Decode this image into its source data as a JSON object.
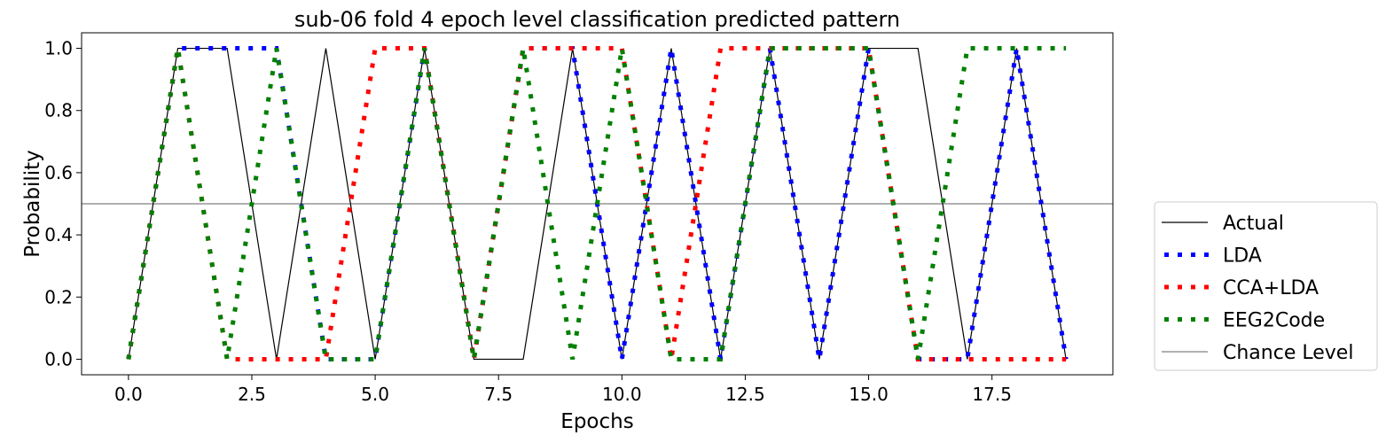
{
  "chart_data": {
    "type": "line",
    "title": "sub-06 fold 4 epoch level classification predicted pattern",
    "xlabel": "Epochs",
    "ylabel": "Probability",
    "xlim": [
      -0.95,
      19.95
    ],
    "ylim": [
      -0.05,
      1.05
    ],
    "xticks": [
      0.0,
      2.5,
      5.0,
      7.5,
      10.0,
      12.5,
      15.0,
      17.5
    ],
    "xtick_labels": [
      "0.0",
      "2.5",
      "5.0",
      "7.5",
      "10.0",
      "12.5",
      "15.0",
      "17.5"
    ],
    "yticks": [
      0.0,
      0.2,
      0.4,
      0.6,
      0.8,
      1.0
    ],
    "ytick_labels": [
      "0.0",
      "0.2",
      "0.4",
      "0.6",
      "0.8",
      "1.0"
    ],
    "grid": false,
    "legend_position": "outside-right",
    "series": [
      {
        "name": "Actual",
        "color": "#000000",
        "style": "solid",
        "points": [
          [
            0,
            0
          ],
          [
            1,
            1
          ],
          [
            2,
            1
          ],
          [
            3,
            0
          ],
          [
            4,
            1
          ],
          [
            5,
            0
          ],
          [
            6,
            1
          ],
          [
            7,
            0
          ],
          [
            8,
            0
          ],
          [
            9,
            1
          ],
          [
            10,
            0
          ],
          [
            11,
            1
          ],
          [
            12,
            0
          ],
          [
            13,
            1
          ],
          [
            14,
            0
          ],
          [
            15,
            1
          ],
          [
            16,
            1
          ],
          [
            17,
            0
          ],
          [
            18,
            1
          ],
          [
            19,
            0
          ]
        ]
      },
      {
        "name": "LDA",
        "color": "#0000ff",
        "style": "dotted",
        "points": [
          [
            0,
            0
          ],
          [
            1,
            1
          ],
          [
            2,
            1
          ],
          [
            3,
            1
          ],
          [
            4,
            0
          ],
          [
            5,
            0
          ],
          [
            6,
            1
          ],
          [
            7,
            0
          ],
          [
            8,
            1
          ],
          [
            9,
            1
          ],
          [
            10,
            0
          ],
          [
            11,
            1
          ],
          [
            12,
            0
          ],
          [
            13,
            1
          ],
          [
            14,
            0
          ],
          [
            15,
            1
          ],
          [
            16,
            0
          ],
          [
            17,
            0
          ],
          [
            18,
            1
          ],
          [
            19,
            0
          ]
        ]
      },
      {
        "name": "CCA+LDA",
        "color": "#ff0000",
        "style": "dotted",
        "points": [
          [
            0,
            0
          ],
          [
            1,
            1
          ],
          [
            2,
            0
          ],
          [
            3,
            0
          ],
          [
            4,
            0
          ],
          [
            5,
            1
          ],
          [
            6,
            1
          ],
          [
            7,
            0
          ],
          [
            8,
            1
          ],
          [
            9,
            1
          ],
          [
            10,
            1
          ],
          [
            11,
            0
          ],
          [
            12,
            1
          ],
          [
            13,
            1
          ],
          [
            14,
            1
          ],
          [
            15,
            1
          ],
          [
            16,
            0
          ],
          [
            17,
            0
          ],
          [
            18,
            0
          ],
          [
            19,
            0
          ]
        ]
      },
      {
        "name": "EEG2Code",
        "color": "#008000",
        "style": "dotted",
        "points": [
          [
            0,
            0
          ],
          [
            1,
            1
          ],
          [
            2,
            0
          ],
          [
            3,
            1
          ],
          [
            4,
            0
          ],
          [
            5,
            0
          ],
          [
            6,
            1
          ],
          [
            7,
            0
          ],
          [
            8,
            1
          ],
          [
            9,
            0
          ],
          [
            10,
            1
          ],
          [
            11,
            0
          ],
          [
            12,
            0
          ],
          [
            13,
            1
          ],
          [
            14,
            1
          ],
          [
            15,
            1
          ],
          [
            16,
            0
          ],
          [
            17,
            1
          ],
          [
            18,
            1
          ],
          [
            19,
            1
          ]
        ]
      },
      {
        "name": "Chance Level",
        "color": "#808080",
        "style": "hline",
        "y": 0.5
      }
    ]
  }
}
